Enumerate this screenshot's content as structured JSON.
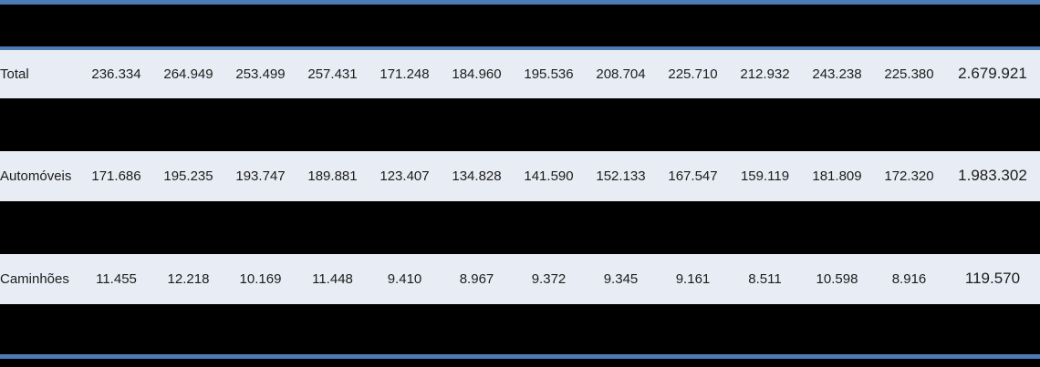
{
  "table": {
    "description": "Monthly vehicle production table with redacted (blacked-out) header and separator rows",
    "column_count": 14,
    "header": {
      "redacted": true,
      "visible_text": ""
    },
    "rows": [
      {
        "type": "data",
        "label": "Total",
        "values": [
          "236.334",
          "264.949",
          "253.499",
          "257.431",
          "171.248",
          "184.960",
          "195.536",
          "208.704",
          "225.710",
          "212.932",
          "243.238",
          "225.380"
        ],
        "total": "2.679.921"
      },
      {
        "type": "redacted"
      },
      {
        "type": "data",
        "label": "Automóveis",
        "values": [
          "171.686",
          "195.235",
          "193.747",
          "189.881",
          "123.407",
          "134.828",
          "141.590",
          "152.133",
          "167.547",
          "159.119",
          "181.809",
          "172.320"
        ],
        "total": "1.983.302"
      },
      {
        "type": "redacted"
      },
      {
        "type": "data",
        "label": "Caminhões",
        "values": [
          "11.455",
          "12.218",
          "10.169",
          "11.448",
          "9.410",
          "8.967",
          "9.372",
          "9.345",
          "9.161",
          "8.511",
          "10.598",
          "8.916"
        ],
        "total": "119.570"
      },
      {
        "type": "redacted"
      }
    ]
  },
  "colors": {
    "accent_blue": "#4d7bb5",
    "row_light": "#e8ecf4",
    "row_redacted": "#000000",
    "text": "#1c1c1c"
  }
}
